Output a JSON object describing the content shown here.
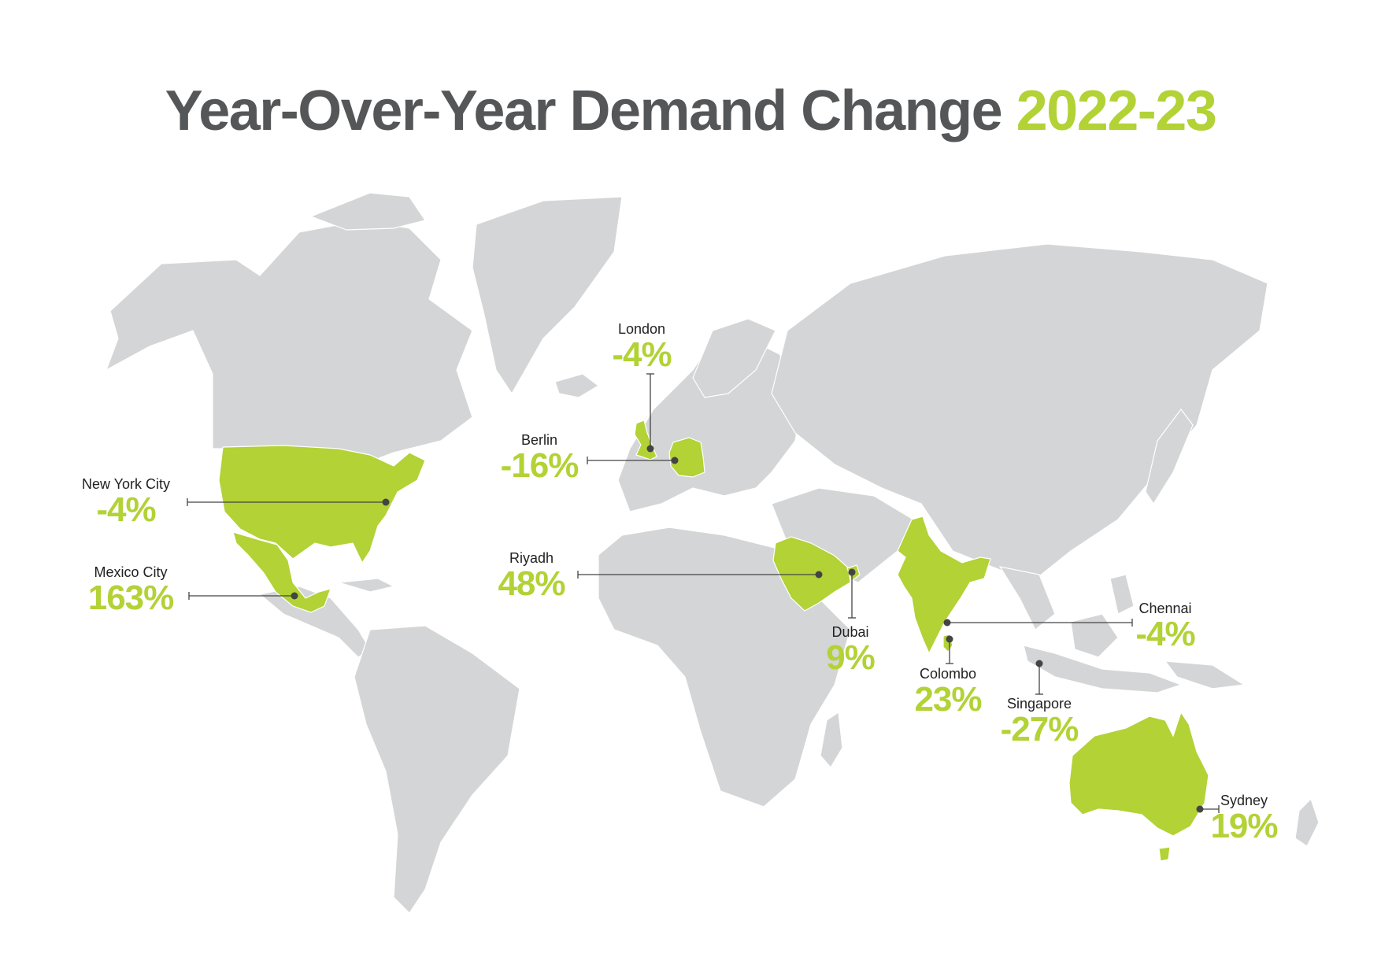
{
  "title": {
    "main": "Year-Over-Year Demand Change",
    "accent": "2022-23"
  },
  "colors": {
    "land": "#d4d5d6",
    "highlight": "#b2d235",
    "title": "#555657",
    "leader": "#444444"
  },
  "highlighted_countries": [
    "United States",
    "Mexico",
    "United Kingdom",
    "Germany",
    "Saudi Arabia",
    "United Arab Emirates",
    "India",
    "Sri Lanka",
    "Australia"
  ],
  "cities": [
    {
      "name": "New York City",
      "value": "-4%"
    },
    {
      "name": "Mexico City",
      "value": "163%"
    },
    {
      "name": "London",
      "value": "-4%"
    },
    {
      "name": "Berlin",
      "value": "-16%"
    },
    {
      "name": "Riyadh",
      "value": "48%"
    },
    {
      "name": "Dubai",
      "value": "9%"
    },
    {
      "name": "Chennai",
      "value": "-4%"
    },
    {
      "name": "Colombo",
      "value": "23%"
    },
    {
      "name": "Singapore",
      "value": "-27%"
    },
    {
      "name": "Sydney",
      "value": "19%"
    }
  ]
}
